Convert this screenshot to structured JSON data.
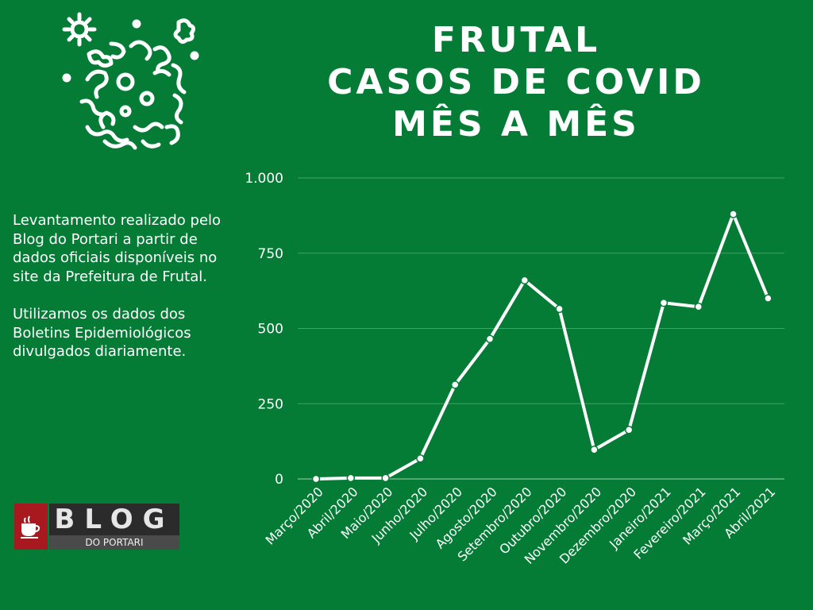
{
  "title_lines": [
    "FRUTAL",
    "CASOS DE COVID",
    "MÊS A MÊS"
  ],
  "description": [
    "Levantamento realizado pelo Blog do Portari a partir de dados oficiais disponíveis no site da Prefeitura de Frutal.",
    "Utilizamos os dados dos Boletins Epidemiológicos divulgados diariamente."
  ],
  "logo": {
    "main": "BLOG",
    "sub": "DO PORTARI"
  },
  "icons": {
    "virus": "virus-icon",
    "cup": "coffee-cup-icon"
  },
  "colors": {
    "background": "#047c35",
    "line": "#ffffff",
    "grid": "#3fa364",
    "logo_red": "#a8191f"
  },
  "chart_data": {
    "type": "line",
    "categories": [
      "Março/2020",
      "Abril/2020",
      "Maio/2020",
      "Junho/2020",
      "Julho/2020",
      "Agosto/2020",
      "Setembro/2020",
      "Outubro/2020",
      "Novembro/2020",
      "Dezembro/2020",
      "Janeiro/2021",
      "Fevereiro/2021",
      "Março/2021",
      "Abril/2021"
    ],
    "series": [
      {
        "values": [
          0,
          3,
          3,
          68,
          313,
          465,
          660,
          565,
          97,
          163,
          585,
          572,
          880,
          600
        ]
      }
    ],
    "ylim": [
      0,
      1000
    ],
    "yticks": [
      0,
      250,
      500,
      750,
      1000
    ],
    "ytick_labels": [
      "0",
      "250",
      "500",
      "750",
      "1.000"
    ],
    "grid": true
  }
}
